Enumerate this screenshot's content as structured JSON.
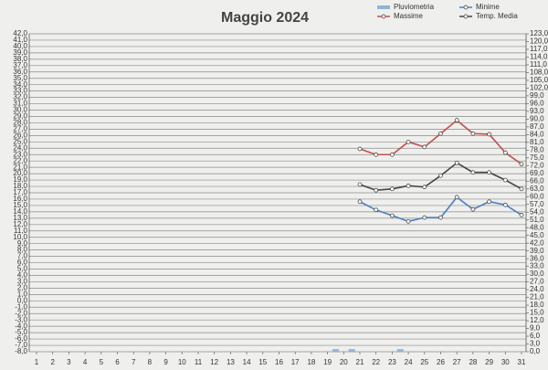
{
  "chart_data": {
    "type": "line",
    "title": "Maggio 2024",
    "x": [
      1,
      2,
      3,
      4,
      5,
      6,
      7,
      8,
      9,
      10,
      11,
      12,
      13,
      14,
      15,
      16,
      17,
      18,
      19,
      20,
      21,
      22,
      23,
      24,
      25,
      26,
      27,
      28,
      29,
      30,
      31
    ],
    "xlim": [
      1,
      31
    ],
    "xticks": [
      1,
      2,
      3,
      4,
      5,
      6,
      7,
      8,
      9,
      10,
      11,
      12,
      13,
      14,
      15,
      16,
      17,
      18,
      19,
      20,
      21,
      22,
      23,
      24,
      25,
      26,
      27,
      28,
      29,
      30,
      31
    ],
    "ylim": [
      -8,
      42
    ],
    "yticks": [
      {
        "value": -8,
        "label": "-8,0"
      },
      {
        "value": -7,
        "label": "-7,0"
      },
      {
        "value": -6,
        "label": "-6,0"
      },
      {
        "value": -5,
        "label": "-5,0"
      },
      {
        "value": -4,
        "label": "-4,0"
      },
      {
        "value": -3,
        "label": "-3,0"
      },
      {
        "value": -2,
        "label": "-2,0"
      },
      {
        "value": -1,
        "label": "-1,0"
      },
      {
        "value": 0,
        "label": "0,0"
      },
      {
        "value": 1,
        "label": "1,0"
      },
      {
        "value": 2,
        "label": "2,0"
      },
      {
        "value": 3,
        "label": "3,0"
      },
      {
        "value": 4,
        "label": "4,0"
      },
      {
        "value": 5,
        "label": "5,0"
      },
      {
        "value": 6,
        "label": "6,0"
      },
      {
        "value": 7,
        "label": "7,0"
      },
      {
        "value": 8,
        "label": "8,0"
      },
      {
        "value": 9,
        "label": "9,0"
      },
      {
        "value": 10,
        "label": "10,0"
      },
      {
        "value": 11,
        "label": "11,0"
      },
      {
        "value": 12,
        "label": "12,0"
      },
      {
        "value": 13,
        "label": "13,0"
      },
      {
        "value": 14,
        "label": "14,0"
      },
      {
        "value": 15,
        "label": "15,0"
      },
      {
        "value": 16,
        "label": "16,0"
      },
      {
        "value": 17,
        "label": "17,0"
      },
      {
        "value": 18,
        "label": "18,0"
      },
      {
        "value": 19,
        "label": "19,0"
      },
      {
        "value": 20,
        "label": "20,0"
      },
      {
        "value": 21,
        "label": "21,0"
      },
      {
        "value": 22,
        "label": "22,0"
      },
      {
        "value": 23,
        "label": "23,0"
      },
      {
        "value": 24,
        "label": "24,0"
      },
      {
        "value": 25,
        "label": "25,0"
      },
      {
        "value": 26,
        "label": "26,0"
      },
      {
        "value": 27,
        "label": "27,0"
      },
      {
        "value": 28,
        "label": "28,0"
      },
      {
        "value": 29,
        "label": "29,0"
      },
      {
        "value": 30,
        "label": "30,0"
      },
      {
        "value": 31,
        "label": "31,0"
      },
      {
        "value": 32,
        "label": "32,0"
      },
      {
        "value": 33,
        "label": "33,0"
      },
      {
        "value": 34,
        "label": "34,0"
      },
      {
        "value": 35,
        "label": "35,0"
      },
      {
        "value": 36,
        "label": "36,0"
      },
      {
        "value": 37,
        "label": "37,0"
      },
      {
        "value": 38,
        "label": "38,0"
      },
      {
        "value": 39,
        "label": "39,0"
      },
      {
        "value": 40,
        "label": "40,0"
      },
      {
        "value": 41,
        "label": "41,0"
      },
      {
        "value": 42,
        "label": "42,0"
      }
    ],
    "y2lim": [
      0,
      123
    ],
    "y2ticks": [
      {
        "value": 0,
        "label": "0,0"
      },
      {
        "value": 3,
        "label": "3,0"
      },
      {
        "value": 6,
        "label": "6,0"
      },
      {
        "value": 9,
        "label": "9,0"
      },
      {
        "value": 12,
        "label": "12,0"
      },
      {
        "value": 15,
        "label": "15,0"
      },
      {
        "value": 18,
        "label": "18,0"
      },
      {
        "value": 21,
        "label": "21,0"
      },
      {
        "value": 24,
        "label": "24,0"
      },
      {
        "value": 27,
        "label": "27,0"
      },
      {
        "value": 30,
        "label": "30,0"
      },
      {
        "value": 33,
        "label": "33,0"
      },
      {
        "value": 36,
        "label": "36,0"
      },
      {
        "value": 39,
        "label": "39,0"
      },
      {
        "value": 42,
        "label": "42,0"
      },
      {
        "value": 45,
        "label": "45,0"
      },
      {
        "value": 48,
        "label": "48,0"
      },
      {
        "value": 51,
        "label": "51,0"
      },
      {
        "value": 54,
        "label": "54,0"
      },
      {
        "value": 57,
        "label": "57,0"
      },
      {
        "value": 60,
        "label": "60,0"
      },
      {
        "value": 63,
        "label": "63,0"
      },
      {
        "value": 66,
        "label": "66,0"
      },
      {
        "value": 69,
        "label": "69,0"
      },
      {
        "value": 72,
        "label": "72,0"
      },
      {
        "value": 75,
        "label": "75,0"
      },
      {
        "value": 78,
        "label": "78,0"
      },
      {
        "value": 81,
        "label": "81,0"
      },
      {
        "value": 84,
        "label": "84,0"
      },
      {
        "value": 87,
        "label": "87,0"
      },
      {
        "value": 90,
        "label": "90,0"
      },
      {
        "value": 93,
        "label": "93,0"
      },
      {
        "value": 96,
        "label": "96,0"
      },
      {
        "value": 99,
        "label": "99,0"
      },
      {
        "value": 102,
        "label": "102,0"
      },
      {
        "value": 105,
        "label": "105,0"
      },
      {
        "value": 108,
        "label": "108,0"
      },
      {
        "value": 111,
        "label": "111,0"
      },
      {
        "value": 114,
        "label": "114,0"
      },
      {
        "value": 117,
        "label": "117,0"
      },
      {
        "value": 120,
        "label": "120,0"
      },
      {
        "value": 123,
        "label": "123,0"
      }
    ],
    "grid": true,
    "series": [
      {
        "name": "Pluviometria",
        "type": "bar",
        "axis": "y2",
        "color": "#8fb4d9",
        "values": [
          null,
          null,
          null,
          null,
          null,
          null,
          null,
          null,
          null,
          null,
          null,
          null,
          null,
          null,
          null,
          null,
          null,
          null,
          null,
          1,
          1,
          null,
          null,
          1,
          null,
          null,
          null,
          null,
          null,
          null,
          null
        ]
      },
      {
        "name": "Minime",
        "color": "#4a7fc0",
        "values": [
          null,
          null,
          null,
          null,
          null,
          null,
          null,
          null,
          null,
          null,
          null,
          null,
          null,
          null,
          null,
          null,
          null,
          null,
          null,
          null,
          15.6,
          14.3,
          13.4,
          12.5,
          13.1,
          13.1,
          16.3,
          14.4,
          15.6,
          15.1,
          13.5
        ]
      },
      {
        "name": "Massime",
        "color": "#c0504d",
        "values": [
          null,
          null,
          null,
          null,
          null,
          null,
          null,
          null,
          null,
          null,
          null,
          null,
          null,
          null,
          null,
          null,
          null,
          null,
          null,
          null,
          23.9,
          23.0,
          23.0,
          25.0,
          24.2,
          26.3,
          28.4,
          26.3,
          26.2,
          23.3,
          21.5
        ]
      },
      {
        "name": "Temp. Media",
        "color": "#444444",
        "values": [
          null,
          null,
          null,
          null,
          null,
          null,
          null,
          null,
          null,
          null,
          null,
          null,
          null,
          null,
          null,
          null,
          null,
          null,
          null,
          null,
          18.3,
          17.4,
          17.6,
          18.1,
          17.9,
          19.7,
          21.7,
          20.2,
          20.2,
          19.0,
          17.6
        ]
      }
    ]
  }
}
